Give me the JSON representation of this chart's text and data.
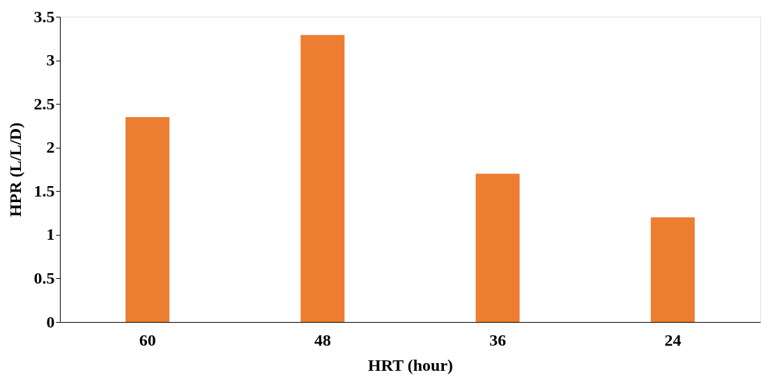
{
  "chart_data": {
    "type": "bar",
    "xlabel": "HRT (hour)",
    "ylabel": "HPR (L/L/D)",
    "categories": [
      "60",
      "48",
      "36",
      "24"
    ],
    "values": [
      2.35,
      3.29,
      1.7,
      1.2
    ],
    "color": "#ed7d31",
    "ylim": [
      0,
      3.5
    ],
    "yticks": [
      0,
      0.5,
      1,
      1.5,
      2,
      2.5,
      3,
      3.5
    ],
    "grid": false
  }
}
